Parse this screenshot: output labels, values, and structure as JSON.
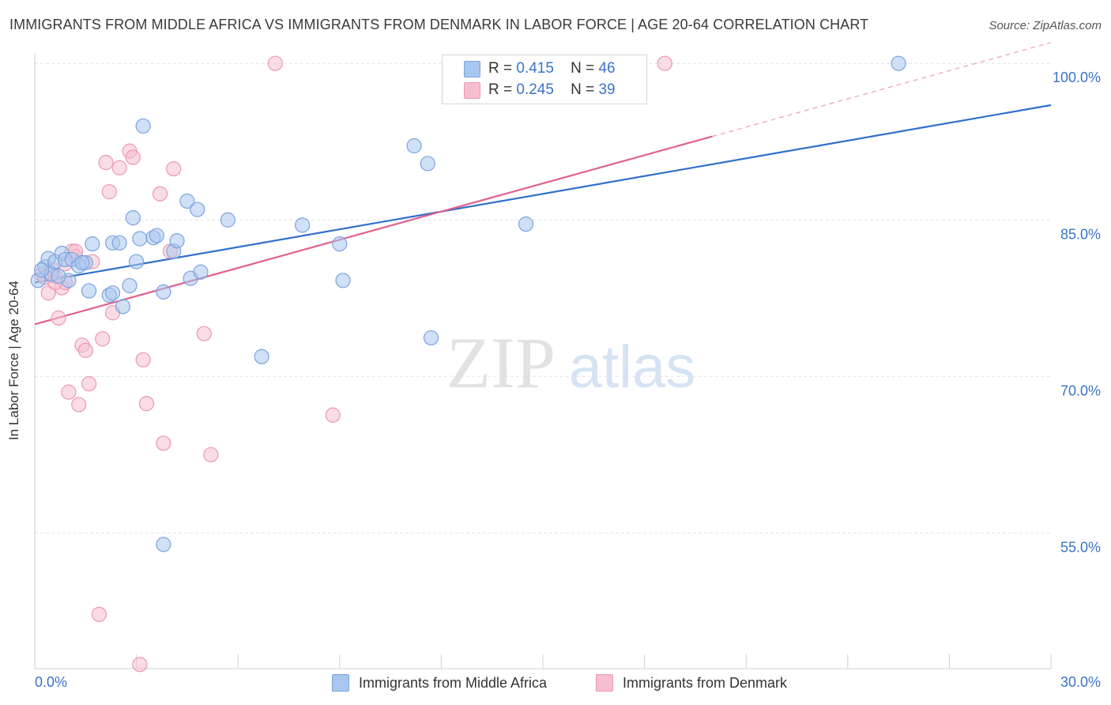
{
  "title": "IMMIGRANTS FROM MIDDLE AFRICA VS IMMIGRANTS FROM DENMARK IN LABOR FORCE | AGE 20-64 CORRELATION CHART",
  "source": "Source: ZipAtlas.com",
  "watermark": {
    "zip": "ZIP",
    "atlas": "atlas"
  },
  "legend": {
    "r_label": "R =",
    "n_label": "N =",
    "rows": [
      {
        "r": "0.415",
        "n": "46"
      },
      {
        "r": "0.245",
        "n": "39"
      }
    ]
  },
  "bottom_legend": [
    "Immigrants from Middle Africa",
    "Immigrants from Denmark"
  ],
  "colors": {
    "blue_fill": "#a9c6ee",
    "blue_stroke": "#7aa4dd",
    "blue_line": "#2f6fcc",
    "pink_fill": "#f6bfd0",
    "pink_stroke": "#eb97b3",
    "pink_line": "#e0608c",
    "tick_text": "#3a73c9",
    "grid": "#e4e4e4"
  },
  "chart_data": {
    "type": "scatter",
    "title": "IMMIGRANTS FROM MIDDLE AFRICA VS IMMIGRANTS FROM DENMARK IN LABOR FORCE | AGE 20-64 CORRELATION CHART",
    "xlabel": "",
    "ylabel": "In Labor Force | Age 20-64",
    "xlim": [
      0,
      30
    ],
    "ylim": [
      42,
      101
    ],
    "x_tick_labels": [
      "0.0%",
      "30.0%"
    ],
    "y_ticks": [
      100,
      85,
      70,
      55
    ],
    "y_tick_labels": [
      "100.0%",
      "85.0%",
      "70.0%",
      "55.0%"
    ],
    "grid": true,
    "legend_position": "top-center",
    "series": [
      {
        "name": "Immigrants from Middle Africa",
        "color": "#a9c6ee",
        "r": 0.415,
        "n": 46,
        "trend": {
          "x": [
            0,
            30
          ],
          "y": [
            79.0,
            96.0
          ]
        },
        "points": [
          [
            0.1,
            79.2
          ],
          [
            0.3,
            80.5
          ],
          [
            0.4,
            81.3
          ],
          [
            0.5,
            79.8
          ],
          [
            0.6,
            81.0
          ],
          [
            0.8,
            81.8
          ],
          [
            0.9,
            81.2
          ],
          [
            1.0,
            79.2
          ],
          [
            1.1,
            81.2
          ],
          [
            1.3,
            80.6
          ],
          [
            1.5,
            80.9
          ],
          [
            1.6,
            78.2
          ],
          [
            1.7,
            82.7
          ],
          [
            2.2,
            77.8
          ],
          [
            2.3,
            78.0
          ],
          [
            2.3,
            82.8
          ],
          [
            2.5,
            82.8
          ],
          [
            2.6,
            76.7
          ],
          [
            2.8,
            78.7
          ],
          [
            2.9,
            85.2
          ],
          [
            3.0,
            81.0
          ],
          [
            3.1,
            83.2
          ],
          [
            3.2,
            94.0
          ],
          [
            3.5,
            83.3
          ],
          [
            3.6,
            83.5
          ],
          [
            3.8,
            78.1
          ],
          [
            4.1,
            82.0
          ],
          [
            4.2,
            83.0
          ],
          [
            4.5,
            86.8
          ],
          [
            4.6,
            79.4
          ],
          [
            4.8,
            86.0
          ],
          [
            4.9,
            80.0
          ],
          [
            5.7,
            85.0
          ],
          [
            6.7,
            71.9
          ],
          [
            7.9,
            84.5
          ],
          [
            9.0,
            82.7
          ],
          [
            9.1,
            79.2
          ],
          [
            11.2,
            92.1
          ],
          [
            11.6,
            90.4
          ],
          [
            11.7,
            73.7
          ],
          [
            14.5,
            84.6
          ],
          [
            25.5,
            100.0
          ],
          [
            3.8,
            53.9
          ],
          [
            0.2,
            80.2
          ],
          [
            1.4,
            80.9
          ],
          [
            0.7,
            79.6
          ]
        ]
      },
      {
        "name": "Immigrants from Denmark",
        "color": "#f6bfd0",
        "r": 0.245,
        "n": 39,
        "trend": {
          "x": [
            0,
            20
          ],
          "y": [
            75.0,
            93.0
          ]
        },
        "trend_dashed": {
          "x": [
            20,
            30
          ],
          "y": [
            93.0,
            102.0
          ]
        },
        "points": [
          [
            0.2,
            79.8
          ],
          [
            0.4,
            78.0
          ],
          [
            0.5,
            80.3
          ],
          [
            0.6,
            79.6
          ],
          [
            0.7,
            75.6
          ],
          [
            0.8,
            78.5
          ],
          [
            0.9,
            79.0
          ],
          [
            1.0,
            68.5
          ],
          [
            1.1,
            82.0
          ],
          [
            1.2,
            81.5
          ],
          [
            1.3,
            67.3
          ],
          [
            1.4,
            73.0
          ],
          [
            1.5,
            72.5
          ],
          [
            1.6,
            69.3
          ],
          [
            1.7,
            81.0
          ],
          [
            2.0,
            73.6
          ],
          [
            2.1,
            90.5
          ],
          [
            2.2,
            87.7
          ],
          [
            2.3,
            76.1
          ],
          [
            2.5,
            90.0
          ],
          [
            2.8,
            91.6
          ],
          [
            2.9,
            91.0
          ],
          [
            3.1,
            42.4
          ],
          [
            3.2,
            71.6
          ],
          [
            3.3,
            67.4
          ],
          [
            3.7,
            87.5
          ],
          [
            3.8,
            63.6
          ],
          [
            4.0,
            82.0
          ],
          [
            4.1,
            89.9
          ],
          [
            5.0,
            74.1
          ],
          [
            5.2,
            62.5
          ],
          [
            7.1,
            100.0
          ],
          [
            8.8,
            66.3
          ],
          [
            18.6,
            100.0
          ],
          [
            1.9,
            47.2
          ],
          [
            0.3,
            79.5
          ],
          [
            1.2,
            82.0
          ],
          [
            0.9,
            80.8
          ],
          [
            0.6,
            79.0
          ]
        ]
      }
    ]
  }
}
